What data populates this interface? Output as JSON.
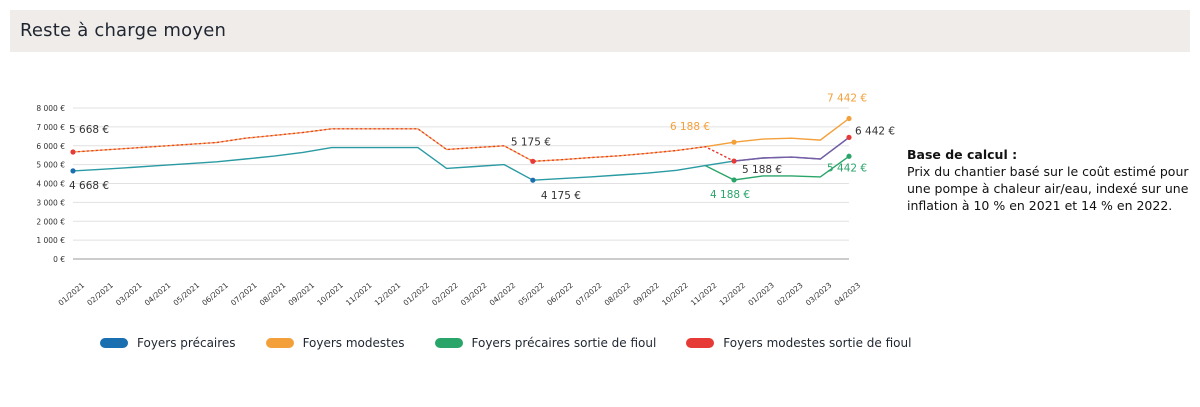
{
  "header": {
    "title": "Reste à charge moyen"
  },
  "note": {
    "title": "Base de calcul :",
    "text": "Prix du chantier basé sur le coût estimé pour une pompe à chaleur air/eau, indexé sur une inflation à 10 % en 2021 et 14 % en 2022."
  },
  "chart_data": {
    "type": "line",
    "title": "Reste à charge moyen",
    "xlabel": "",
    "ylabel": "",
    "ylim": [
      0,
      8000
    ],
    "grid": true,
    "legend_position": "bottom",
    "y_ticks": [
      {
        "value": 0,
        "label": "0 €"
      },
      {
        "value": 1000,
        "label": "1 000 €"
      },
      {
        "value": 2000,
        "label": "2 000 €"
      },
      {
        "value": 3000,
        "label": "3 000 €"
      },
      {
        "value": 4000,
        "label": "4 000 €"
      },
      {
        "value": 5000,
        "label": "5 000 €"
      },
      {
        "value": 6000,
        "label": "6 000 €"
      },
      {
        "value": 7000,
        "label": "7 000 €"
      },
      {
        "value": 8000,
        "label": "8 000 €"
      }
    ],
    "categories": [
      "01/2021",
      "02/2021",
      "03/2021",
      "04/2021",
      "05/2021",
      "06/2021",
      "07/2021",
      "08/2021",
      "09/2021",
      "10/2021",
      "11/2021",
      "12/2021",
      "01/2022",
      "02/2022",
      "03/2022",
      "04/2022",
      "05/2022",
      "06/2022",
      "07/2022",
      "08/2022",
      "09/2022",
      "10/2022",
      "11/2022",
      "12/2022",
      "01/2023",
      "02/2023",
      "03/2023",
      "04/2023"
    ],
    "series": [
      {
        "name": "Foyers précaires",
        "color": "#1a6fb0",
        "values": [
          4668,
          4750,
          4850,
          4950,
          5050,
          5150,
          5300,
          5450,
          5650,
          5900,
          5900,
          5900,
          5900,
          4800,
          4900,
          5000,
          4175,
          4260,
          4350,
          4450,
          4550,
          4700,
          4950,
          5188,
          5350,
          5400,
          5300,
          6442
        ]
      },
      {
        "name": "Foyers modestes",
        "color": "#f4a03a",
        "values": [
          5668,
          5770,
          5870,
          5970,
          6070,
          6170,
          6400,
          6550,
          6700,
          6900,
          6900,
          6900,
          6900,
          5800,
          5900,
          6000,
          5175,
          5260,
          5370,
          5470,
          5600,
          5750,
          5950,
          6188,
          6350,
          6400,
          6300,
          7442
        ]
      },
      {
        "name": "Foyers précaires sortie de fioul",
        "color": "#2aa56a",
        "values": [
          null,
          null,
          null,
          null,
          null,
          null,
          null,
          null,
          null,
          null,
          null,
          null,
          null,
          null,
          null,
          null,
          null,
          null,
          null,
          null,
          null,
          null,
          4950,
          4188,
          4400,
          4400,
          4350,
          5442
        ]
      },
      {
        "name": "Foyers modestes sortie de fioul",
        "color": "#e63a36",
        "values": [
          5668,
          5770,
          5870,
          5970,
          6070,
          6170,
          6400,
          6550,
          6700,
          6900,
          6900,
          6900,
          6900,
          5800,
          5900,
          6000,
          5175,
          5260,
          5370,
          5470,
          5600,
          5750,
          5950,
          5188,
          5350,
          5400,
          5300,
          6442
        ]
      }
    ],
    "annotations": [
      {
        "label": "5 668 €",
        "x": "01/2021",
        "y": 5668,
        "color": "#333333"
      },
      {
        "label": "4 668 €",
        "x": "01/2021",
        "y": 4668,
        "color": "#333333"
      },
      {
        "label": "5 175 €",
        "x": "05/2022",
        "y": 5175,
        "color": "#333333"
      },
      {
        "label": "4 175 €",
        "x": "05/2022",
        "y": 4175,
        "color": "#333333"
      },
      {
        "label": "6 188 €",
        "x": "12/2022",
        "y": 6188,
        "color": "#f4a03a"
      },
      {
        "label": "5 188 €",
        "x": "12/2022",
        "y": 5188,
        "color": "#333333"
      },
      {
        "label": "4 188 €",
        "x": "12/2022",
        "y": 4188,
        "color": "#2aa56a"
      },
      {
        "label": "7 442 €",
        "x": "04/2023",
        "y": 7442,
        "color": "#f4a03a"
      },
      {
        "label": "6 442 €",
        "x": "04/2023",
        "y": 6442,
        "color": "#333333"
      },
      {
        "label": "5 442 €",
        "x": "04/2023",
        "y": 5442,
        "color": "#2aa56a"
      }
    ]
  },
  "legend": {
    "items": [
      {
        "label": "Foyers précaires",
        "color": "#1a6fb0"
      },
      {
        "label": "Foyers modestes",
        "color": "#f4a03a"
      },
      {
        "label": "Foyers précaires sortie de fioul",
        "color": "#2aa56a"
      },
      {
        "label": "Foyers modestes sortie de fioul",
        "color": "#e63a36"
      }
    ]
  }
}
